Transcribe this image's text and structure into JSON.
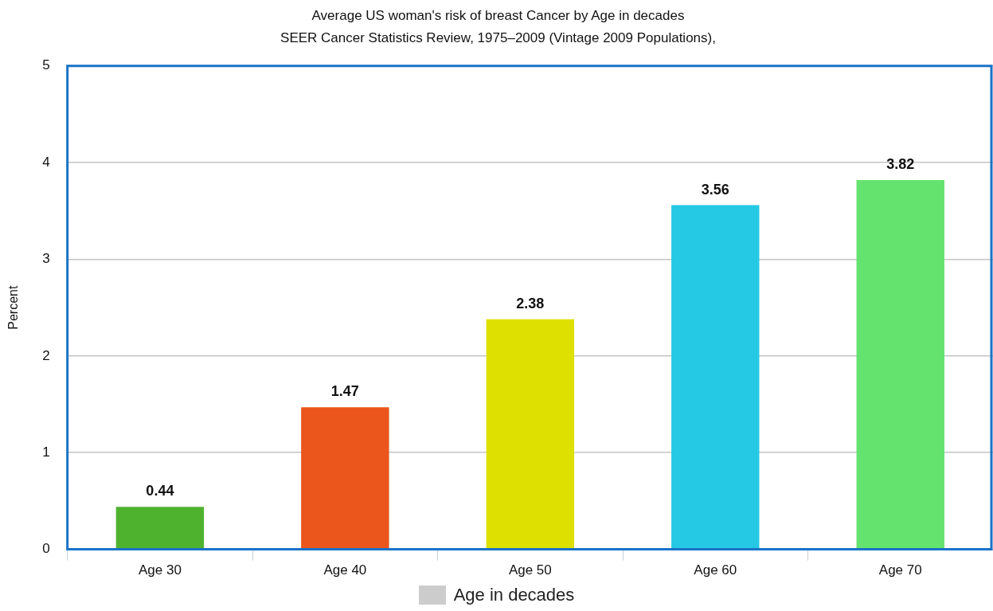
{
  "chart_data": {
    "type": "bar",
    "title": "Average US woman's risk of breast Cancer by Age in decades",
    "subtitle": "SEER Cancer Statistics Review, 1975–2009 (Vintage 2009 Populations),",
    "ylabel": "Percent",
    "categories": [
      "Age 30",
      "Age 40",
      "Age 50",
      "Age 60",
      "Age 70"
    ],
    "series": [
      {
        "name": "Age in decades",
        "color": "#cccccc",
        "colors": [
          "#4fb22f",
          "#ea561b",
          "#dde000",
          "#26c9e3",
          "#65e36f"
        ],
        "values": [
          0.44,
          1.47,
          2.38,
          3.56,
          3.82
        ]
      }
    ],
    "ylim": [
      0,
      5
    ],
    "yticks": [
      0,
      1,
      2,
      3,
      4,
      5
    ],
    "grid": "y",
    "legend": "bottom",
    "data_labels": true
  }
}
